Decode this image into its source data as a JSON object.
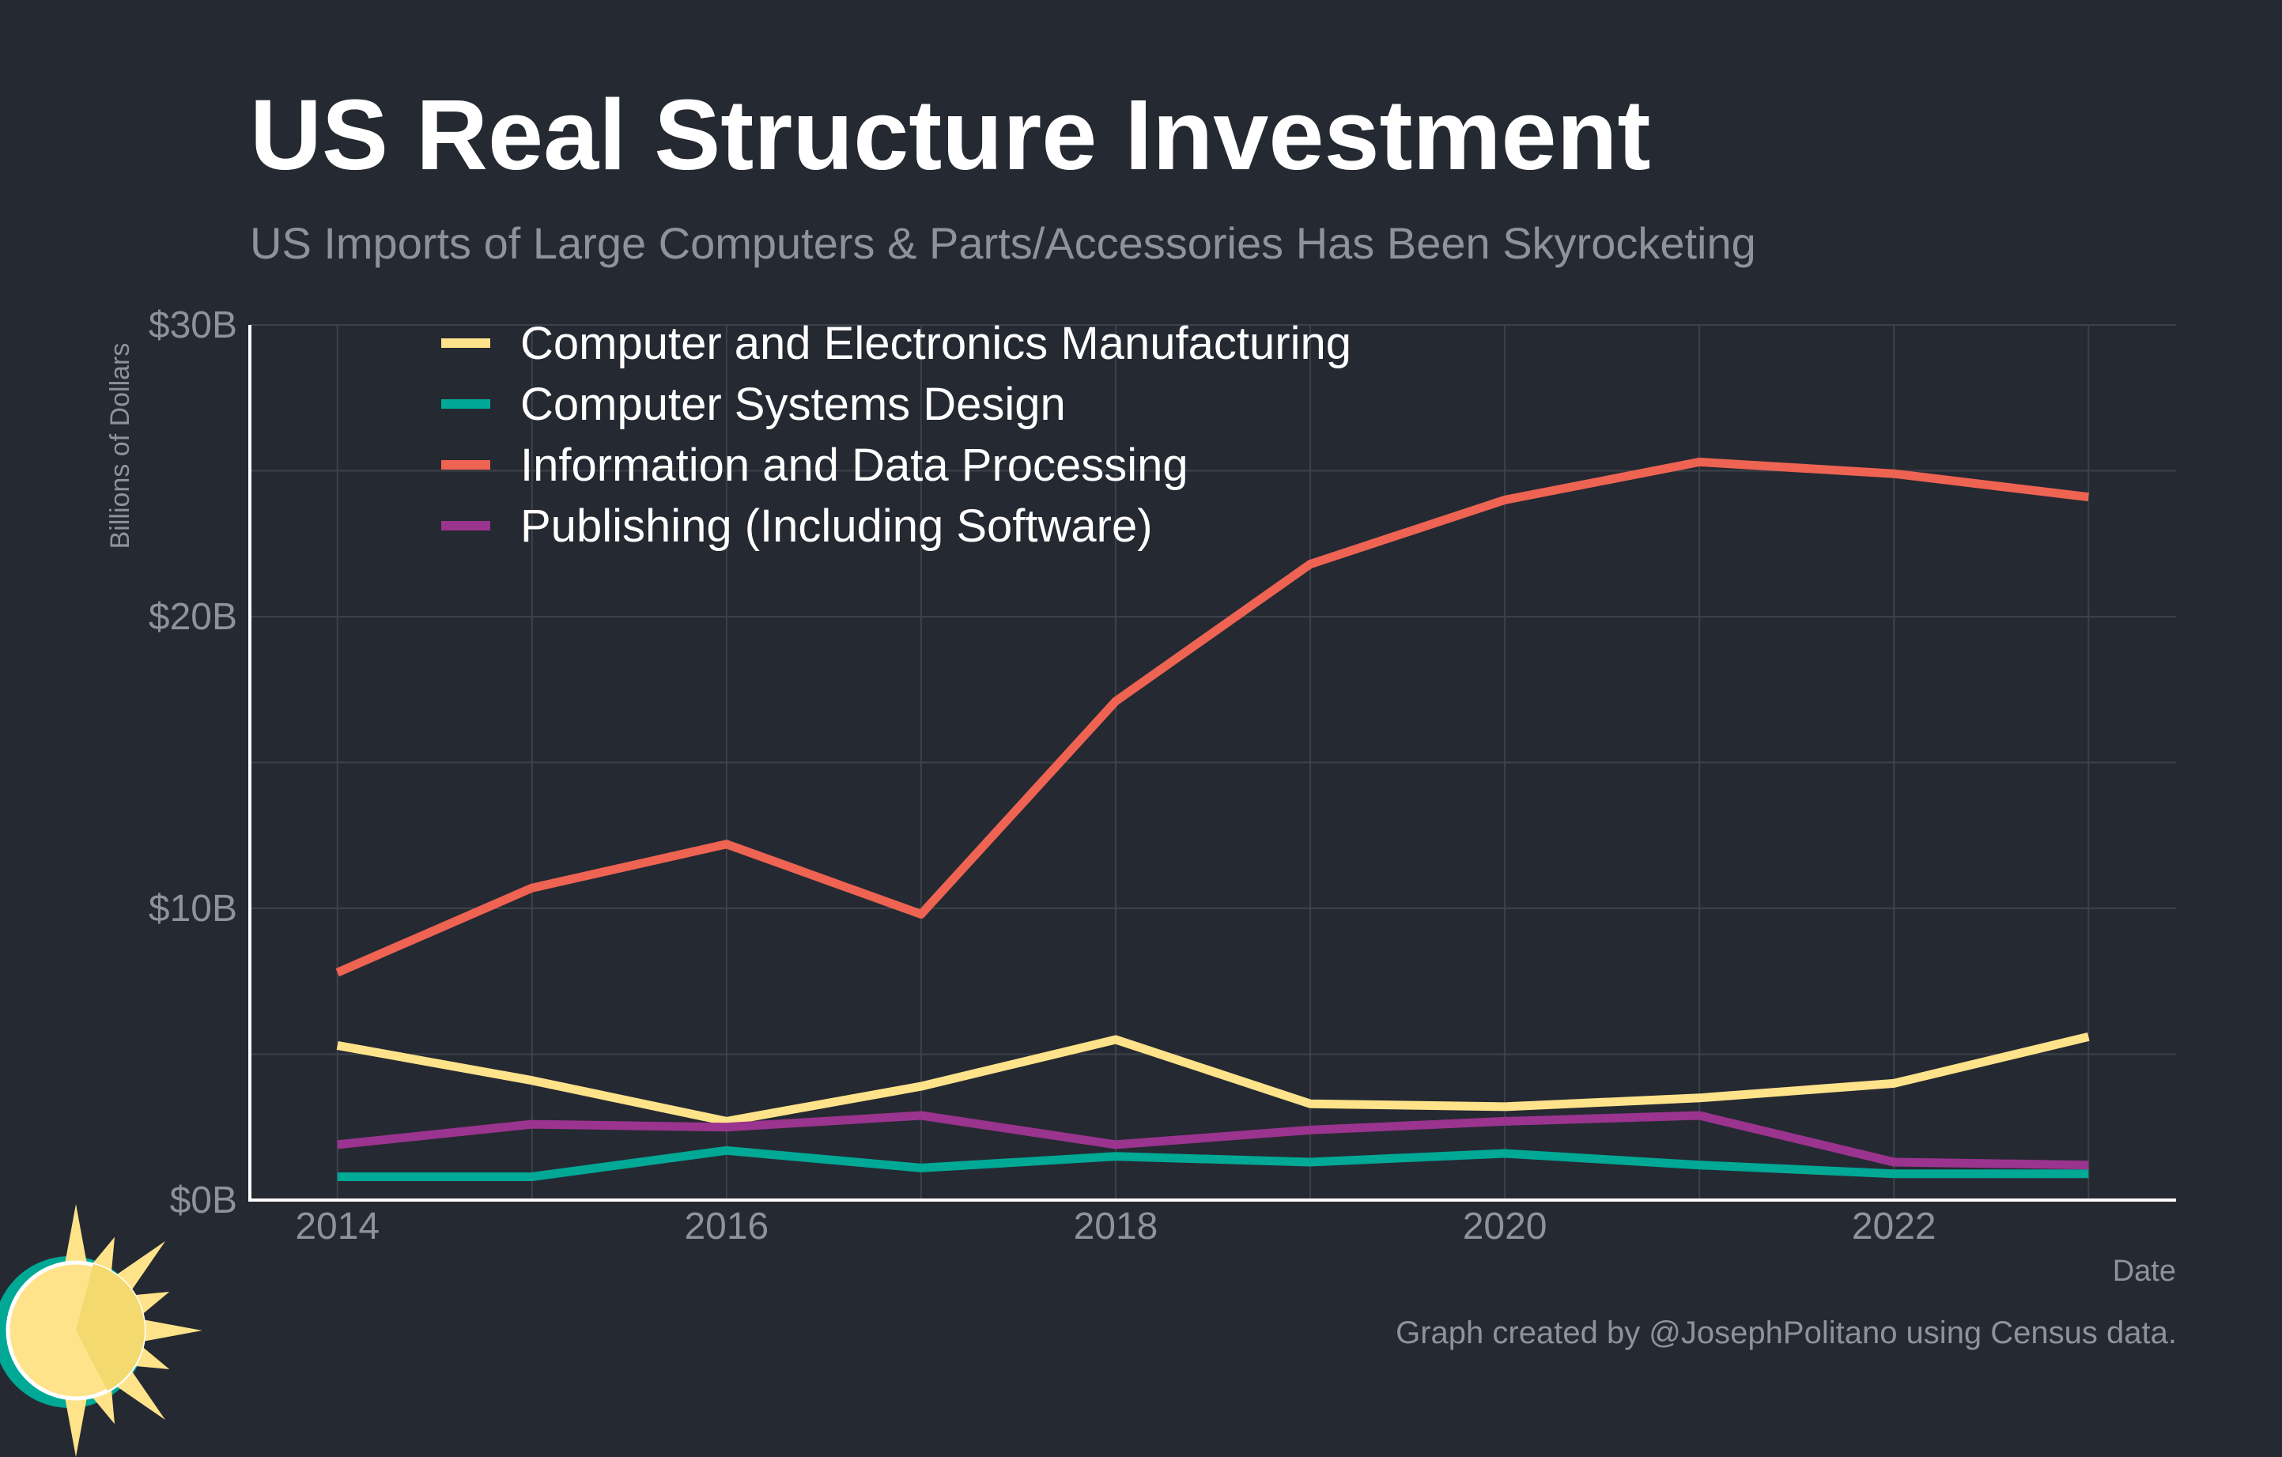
{
  "header": {
    "title": "US Real Structure Investment",
    "subtitle": "US Imports of Large Computers & Parts/Accessories Has Been Skyrocketing"
  },
  "footer": {
    "caption": "Graph created by @JosephPolitano using Census data."
  },
  "logo": {
    "icon": "sun-logo-icon",
    "colors": [
      "#ffe38a",
      "#00a896"
    ]
  },
  "colors": {
    "background": "#252932",
    "grid": "#3d414a",
    "axis": "#ffffff",
    "tick_text": "#8e929a",
    "legend_text": "#ffffff"
  },
  "chart_data": {
    "type": "line",
    "title": "US Real Structure Investment",
    "subtitle": "US Imports of Large Computers & Parts/Accessories Has Been Skyrocketing",
    "xlabel": "Date",
    "ylabel": "Billions of Dollars",
    "x": [
      2014,
      2015,
      2016,
      2017,
      2018,
      2019,
      2020,
      2021,
      2022,
      2023
    ],
    "xticks": [
      2014,
      2016,
      2018,
      2020,
      2022
    ],
    "xtick_labels": [
      "2014",
      "2016",
      "2018",
      "2020",
      "2022"
    ],
    "xlim": [
      2013.55,
      2023.45
    ],
    "yticks": [
      0,
      10,
      20,
      30
    ],
    "ytick_labels": [
      "$0B",
      "$10B",
      "$20B",
      "$30B"
    ],
    "ylim": [
      0,
      30
    ],
    "grid": true,
    "legend_position": "top-left",
    "series": [
      {
        "name": "Computer and Electronics Manufacturing",
        "color": "#ffe38a",
        "values": [
          5.3,
          4.1,
          2.7,
          3.9,
          5.5,
          3.3,
          3.2,
          3.5,
          4.0,
          5.6
        ]
      },
      {
        "name": "Computer Systems Design",
        "color": "#00a896",
        "values": [
          0.8,
          0.8,
          1.7,
          1.1,
          1.5,
          1.3,
          1.6,
          1.2,
          0.9,
          0.9
        ]
      },
      {
        "name": "Information and Data Processing",
        "color": "#ee6352",
        "values": [
          7.8,
          10.7,
          12.2,
          9.8,
          17.1,
          21.8,
          24.0,
          25.3,
          24.9,
          24.1
        ]
      },
      {
        "name": "Publishing (Including Software)",
        "color": "#9a348e",
        "values": [
          1.9,
          2.6,
          2.5,
          2.9,
          1.9,
          2.4,
          2.7,
          2.9,
          1.3,
          1.2
        ]
      }
    ]
  }
}
